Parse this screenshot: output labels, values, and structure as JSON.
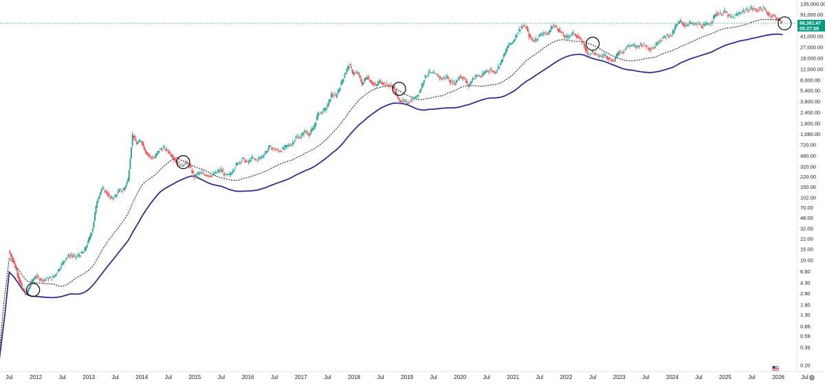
{
  "chart_data": {
    "type": "candlestick",
    "title": "",
    "y_scale": "log",
    "y_tick_labels": [
      "135,000.00",
      "91,000.00",
      "41,000.00",
      "27,000.00",
      "18,000.00",
      "12,000.00",
      "8,000.00",
      "5,400.00",
      "3,600.00",
      "2,400.00",
      "1,600.00",
      "1,080.00",
      "720.00",
      "480.00",
      "320.00",
      "220.00",
      "150.00",
      "102.00",
      "70.00",
      "48.00",
      "32.00",
      "22.00",
      "15.00",
      "10.00",
      "6.50",
      "4.30",
      "2.90",
      "1.90",
      "1.30",
      "0.85",
      "0.59",
      "0.39",
      "0.20"
    ],
    "x_tick_labels": [
      "Jul",
      "2012",
      "Jul",
      "2013",
      "Jul",
      "2014",
      "Jul",
      "2015",
      "Jul",
      "2016",
      "Jul",
      "2017",
      "Jul",
      "2018",
      "Jul",
      "2019",
      "Jul",
      "2020",
      "Jul",
      "2021",
      "Jul",
      "2022",
      "Jul",
      "2023",
      "Jul",
      "2024",
      "Jul",
      "2025",
      "Jul",
      "2026",
      "Jul"
    ],
    "current_price": {
      "label": "66,361.47",
      "countdown": "05:27:08",
      "color": "#089981"
    },
    "price_line_color": "#26a69a",
    "up_color": "#26a69a",
    "down_color": "#ef5350",
    "ma_fast_color": "#000000",
    "ma_slow_color": "#2e2a8f",
    "series": [
      {
        "style": "candles",
        "points": [
          [
            "2011-07",
            14
          ],
          [
            "2011-08",
            10
          ],
          [
            "2011-09",
            6
          ],
          [
            "2011-10",
            3.5
          ],
          [
            "2011-11",
            2.8
          ],
          [
            "2011-12",
            4.2
          ],
          [
            "2012-01",
            5.5
          ],
          [
            "2012-02",
            5
          ],
          [
            "2012-03",
            4.8
          ],
          [
            "2012-04",
            5
          ],
          [
            "2012-05",
            5.2
          ],
          [
            "2012-06",
            6.5
          ],
          [
            "2012-07",
            8.5
          ],
          [
            "2012-08",
            11
          ],
          [
            "2012-09",
            12
          ],
          [
            "2012-10",
            11
          ],
          [
            "2012-11",
            12
          ],
          [
            "2012-12",
            13.5
          ],
          [
            "2013-01",
            20
          ],
          [
            "2013-02",
            33
          ],
          [
            "2013-03",
            92
          ],
          [
            "2013-04",
            140
          ],
          [
            "2013-05",
            128
          ],
          [
            "2013-06",
            98
          ],
          [
            "2013-07",
            105
          ],
          [
            "2013-08",
            130
          ],
          [
            "2013-09",
            135
          ],
          [
            "2013-10",
            200
          ],
          [
            "2013-11",
            1050
          ],
          [
            "2013-12",
            750
          ],
          [
            "2014-01",
            850
          ],
          [
            "2014-02",
            560
          ],
          [
            "2014-03",
            460
          ],
          [
            "2014-04",
            440
          ],
          [
            "2014-05",
            600
          ],
          [
            "2014-06",
            640
          ],
          [
            "2014-07",
            580
          ],
          [
            "2014-08",
            480
          ],
          [
            "2014-09",
            385
          ],
          [
            "2014-10",
            335
          ],
          [
            "2014-11",
            375
          ],
          [
            "2014-12",
            320
          ],
          [
            "2015-01",
            220
          ],
          [
            "2015-02",
            255
          ],
          [
            "2015-03",
            245
          ],
          [
            "2015-04",
            235
          ],
          [
            "2015-05",
            230
          ],
          [
            "2015-06",
            260
          ],
          [
            "2015-07",
            285
          ],
          [
            "2015-08",
            230
          ],
          [
            "2015-09",
            235
          ],
          [
            "2015-10",
            310
          ],
          [
            "2015-11",
            375
          ],
          [
            "2015-12",
            430
          ],
          [
            "2016-01",
            370
          ],
          [
            "2016-02",
            435
          ],
          [
            "2016-03",
            415
          ],
          [
            "2016-04",
            450
          ],
          [
            "2016-05",
            530
          ],
          [
            "2016-06",
            670
          ],
          [
            "2016-07",
            620
          ],
          [
            "2016-08",
            575
          ],
          [
            "2016-09",
            610
          ],
          [
            "2016-10",
            700
          ],
          [
            "2016-11",
            740
          ],
          [
            "2016-12",
            960
          ],
          [
            "2017-01",
            970
          ],
          [
            "2017-02",
            1190
          ],
          [
            "2017-03",
            1080
          ],
          [
            "2017-04",
            1350
          ],
          [
            "2017-05",
            2300
          ],
          [
            "2017-06",
            2480
          ],
          [
            "2017-07",
            2870
          ],
          [
            "2017-08",
            4700
          ],
          [
            "2017-09",
            4340
          ],
          [
            "2017-10",
            6450
          ],
          [
            "2017-11",
            9950
          ],
          [
            "2017-12",
            14000
          ],
          [
            "2018-01",
            10200
          ],
          [
            "2018-02",
            10300
          ],
          [
            "2018-03",
            6900
          ],
          [
            "2018-04",
            9250
          ],
          [
            "2018-05",
            7500
          ],
          [
            "2018-06",
            6400
          ],
          [
            "2018-07",
            7750
          ],
          [
            "2018-08",
            7000
          ],
          [
            "2018-09",
            6600
          ],
          [
            "2018-10",
            6300
          ],
          [
            "2018-11",
            4000
          ],
          [
            "2018-12",
            3700
          ],
          [
            "2019-01",
            3450
          ],
          [
            "2019-02",
            3800
          ],
          [
            "2019-03",
            4100
          ],
          [
            "2019-04",
            5300
          ],
          [
            "2019-05",
            8550
          ],
          [
            "2019-06",
            10800
          ],
          [
            "2019-07",
            10100
          ],
          [
            "2019-08",
            9600
          ],
          [
            "2019-09",
            8300
          ],
          [
            "2019-10",
            9150
          ],
          [
            "2019-11",
            7550
          ],
          [
            "2019-12",
            7200
          ],
          [
            "2020-01",
            9350
          ],
          [
            "2020-02",
            8550
          ],
          [
            "2020-03",
            6400
          ],
          [
            "2020-04",
            8650
          ],
          [
            "2020-05",
            9450
          ],
          [
            "2020-06",
            9150
          ],
          [
            "2020-07",
            11350
          ],
          [
            "2020-08",
            11650
          ],
          [
            "2020-09",
            10780
          ],
          [
            "2020-10",
            13800
          ],
          [
            "2020-11",
            19700
          ],
          [
            "2020-12",
            29000
          ],
          [
            "2021-01",
            33100
          ],
          [
            "2021-02",
            45200
          ],
          [
            "2021-03",
            58800
          ],
          [
            "2021-04",
            57700
          ],
          [
            "2021-05",
            37300
          ],
          [
            "2021-06",
            35000
          ],
          [
            "2021-07",
            41500
          ],
          [
            "2021-08",
            47100
          ],
          [
            "2021-09",
            43800
          ],
          [
            "2021-10",
            61300
          ],
          [
            "2021-11",
            57000
          ],
          [
            "2021-12",
            46300
          ],
          [
            "2022-01",
            38500
          ],
          [
            "2022-02",
            43200
          ],
          [
            "2022-03",
            45500
          ],
          [
            "2022-04",
            37700
          ],
          [
            "2022-05",
            31800
          ],
          [
            "2022-06",
            19900
          ],
          [
            "2022-07",
            23300
          ],
          [
            "2022-08",
            20050
          ],
          [
            "2022-09",
            19400
          ],
          [
            "2022-10",
            20500
          ],
          [
            "2022-11",
            17150
          ],
          [
            "2022-12",
            16550
          ],
          [
            "2023-01",
            23100
          ],
          [
            "2023-02",
            23150
          ],
          [
            "2023-03",
            28450
          ],
          [
            "2023-04",
            29250
          ],
          [
            "2023-05",
            27200
          ],
          [
            "2023-06",
            30450
          ],
          [
            "2023-07",
            29250
          ],
          [
            "2023-08",
            25950
          ],
          [
            "2023-09",
            26950
          ],
          [
            "2023-10",
            34650
          ],
          [
            "2023-11",
            37700
          ],
          [
            "2023-12",
            42300
          ],
          [
            "2024-01",
            42600
          ],
          [
            "2024-02",
            61200
          ],
          [
            "2024-03",
            71300
          ],
          [
            "2024-04",
            60700
          ],
          [
            "2024-05",
            67500
          ],
          [
            "2024-06",
            62700
          ],
          [
            "2024-07",
            64600
          ],
          [
            "2024-08",
            58950
          ],
          [
            "2024-09",
            63300
          ],
          [
            "2024-10",
            70200
          ],
          [
            "2024-11",
            96400
          ],
          [
            "2024-12",
            93400
          ],
          [
            "2025-01",
            102400
          ],
          [
            "2025-02",
            84300
          ],
          [
            "2025-03",
            82500
          ],
          [
            "2025-04",
            94200
          ],
          [
            "2025-05",
            104600
          ],
          [
            "2025-06",
            107100
          ],
          [
            "2025-07",
            115700
          ],
          [
            "2025-08",
            108200
          ],
          [
            "2025-09",
            114000
          ],
          [
            "2025-10",
            109500
          ],
          [
            "2025-11",
            90400
          ],
          [
            "2025-12",
            87500
          ],
          [
            "2026-01",
            78000
          ],
          [
            "2026-02",
            66361
          ]
        ]
      }
    ]
  }
}
